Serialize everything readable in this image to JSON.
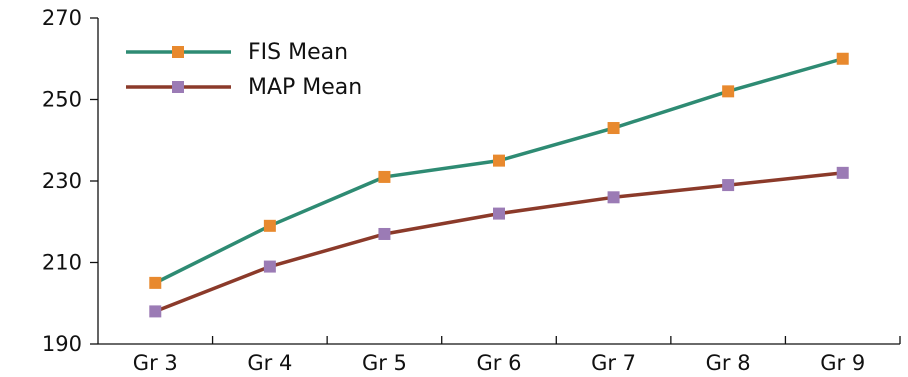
{
  "chart_data": {
    "type": "line",
    "categories": [
      "Gr 3",
      "Gr 4",
      "Gr 5",
      "Gr 6",
      "Gr 7",
      "Gr 8",
      "Gr 9"
    ],
    "ylim": [
      190,
      270
    ],
    "yticks": [
      190,
      210,
      230,
      250,
      270
    ],
    "grid": false,
    "legend_position": "top-left",
    "series": [
      {
        "name": "FIS Mean",
        "values": [
          205,
          219,
          231,
          235,
          243,
          252,
          260
        ],
        "line_color": "#2e8b73",
        "marker_color": "#e8892e"
      },
      {
        "name": "MAP Mean",
        "values": [
          198,
          209,
          217,
          222,
          226,
          229,
          232
        ],
        "line_color": "#8b3a2a",
        "marker_color": "#9b7bb5"
      }
    ]
  }
}
